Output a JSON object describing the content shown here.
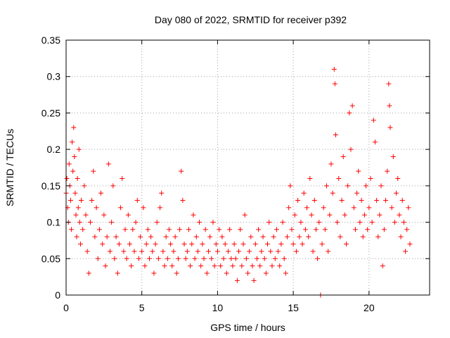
{
  "chart_data": {
    "type": "scatter",
    "title": "Day 080 of 2022, SRMTID for receiver p392",
    "xlabel": "GPS time / hours",
    "ylabel": "SRMTID / TECUs",
    "xlim": [
      0,
      24
    ],
    "ylim": [
      0,
      0.35
    ],
    "x_ticks": [
      0,
      5,
      10,
      15,
      20
    ],
    "x_tick_labels": [
      "0",
      "5",
      "10",
      "15",
      "20"
    ],
    "y_ticks": [
      0,
      0.05,
      0.1,
      0.15,
      0.2,
      0.25,
      0.3,
      0.35
    ],
    "y_tick_labels": [
      "0",
      "0.05",
      "0.1",
      "0.15",
      "0.2",
      "0.25",
      "0.3",
      "0.35"
    ],
    "grid": true,
    "marker": "+",
    "color": "#ff0000",
    "series": [
      {
        "name": "SRMTID",
        "points": [
          [
            0.0,
            0.14
          ],
          [
            0.05,
            0.16
          ],
          [
            0.1,
            0.12
          ],
          [
            0.15,
            0.1
          ],
          [
            0.2,
            0.18
          ],
          [
            0.25,
            0.15
          ],
          [
            0.3,
            0.13
          ],
          [
            0.35,
            0.09
          ],
          [
            0.4,
            0.21
          ],
          [
            0.45,
            0.17
          ],
          [
            0.5,
            0.23
          ],
          [
            0.55,
            0.19
          ],
          [
            0.6,
            0.14
          ],
          [
            0.65,
            0.11
          ],
          [
            0.7,
            0.08
          ],
          [
            0.75,
            0.16
          ],
          [
            0.8,
            0.12
          ],
          [
            0.85,
            0.2
          ],
          [
            0.9,
            0.1
          ],
          [
            0.95,
            0.07
          ],
          [
            1.0,
            0.13
          ],
          [
            1.1,
            0.09
          ],
          [
            1.2,
            0.15
          ],
          [
            1.3,
            0.11
          ],
          [
            1.4,
            0.06
          ],
          [
            1.5,
            0.03
          ],
          [
            1.6,
            0.1
          ],
          [
            1.7,
            0.13
          ],
          [
            1.8,
            0.17
          ],
          [
            1.9,
            0.08
          ],
          [
            2.0,
            0.12
          ],
          [
            2.1,
            0.05
          ],
          [
            2.2,
            0.09
          ],
          [
            2.3,
            0.14
          ],
          [
            2.4,
            0.07
          ],
          [
            2.5,
            0.11
          ],
          [
            2.6,
            0.04
          ],
          [
            2.7,
            0.08
          ],
          [
            2.8,
            0.18
          ],
          [
            2.9,
            0.06
          ],
          [
            3.0,
            0.1
          ],
          [
            3.1,
            0.15
          ],
          [
            3.2,
            0.05
          ],
          [
            3.3,
            0.08
          ],
          [
            3.4,
            0.03
          ],
          [
            3.5,
            0.07
          ],
          [
            3.6,
            0.12
          ],
          [
            3.7,
            0.16
          ],
          [
            3.8,
            0.06
          ],
          [
            3.9,
            0.09
          ],
          [
            4.0,
            0.05
          ],
          [
            4.1,
            0.11
          ],
          [
            4.2,
            0.07
          ],
          [
            4.3,
            0.04
          ],
          [
            4.4,
            0.09
          ],
          [
            4.5,
            0.06
          ],
          [
            4.6,
            0.1
          ],
          [
            4.7,
            0.13
          ],
          [
            4.8,
            0.05
          ],
          [
            4.9,
            0.08
          ],
          [
            5.0,
            0.06
          ],
          [
            5.1,
            0.12
          ],
          [
            5.2,
            0.04
          ],
          [
            5.3,
            0.07
          ],
          [
            5.4,
            0.09
          ],
          [
            5.5,
            0.05
          ],
          [
            5.6,
            0.08
          ],
          [
            5.7,
            0.06
          ],
          [
            5.8,
            0.03
          ],
          [
            5.9,
            0.07
          ],
          [
            6.0,
            0.1
          ],
          [
            6.1,
            0.05
          ],
          [
            6.2,
            0.12
          ],
          [
            6.3,
            0.14
          ],
          [
            6.4,
            0.06
          ],
          [
            6.5,
            0.04
          ],
          [
            6.6,
            0.08
          ],
          [
            6.7,
            0.05
          ],
          [
            6.8,
            0.09
          ],
          [
            6.9,
            0.07
          ],
          [
            7.0,
            0.04
          ],
          [
            7.1,
            0.06
          ],
          [
            7.2,
            0.08
          ],
          [
            7.3,
            0.03
          ],
          [
            7.4,
            0.05
          ],
          [
            7.5,
            0.09
          ],
          [
            7.6,
            0.17
          ],
          [
            7.7,
            0.13
          ],
          [
            7.8,
            0.07
          ],
          [
            7.9,
            0.05
          ],
          [
            8.0,
            0.06
          ],
          [
            8.1,
            0.09
          ],
          [
            8.2,
            0.04
          ],
          [
            8.3,
            0.07
          ],
          [
            8.4,
            0.11
          ],
          [
            8.5,
            0.05
          ],
          [
            8.6,
            0.08
          ],
          [
            8.7,
            0.06
          ],
          [
            8.8,
            0.1
          ],
          [
            8.9,
            0.04
          ],
          [
            9.0,
            0.07
          ],
          [
            9.1,
            0.05
          ],
          [
            9.2,
            0.09
          ],
          [
            9.3,
            0.03
          ],
          [
            9.4,
            0.06
          ],
          [
            9.5,
            0.08
          ],
          [
            9.6,
            0.05
          ],
          [
            9.7,
            0.1
          ],
          [
            9.8,
            0.04
          ],
          [
            9.9,
            0.07
          ],
          [
            10.0,
            0.06
          ],
          [
            10.1,
            0.09
          ],
          [
            10.2,
            0.04
          ],
          [
            10.3,
            0.08
          ],
          [
            10.4,
            0.05
          ],
          [
            10.5,
            0.07
          ],
          [
            10.6,
            0.03
          ],
          [
            10.7,
            0.06
          ],
          [
            10.8,
            0.09
          ],
          [
            10.9,
            0.05
          ],
          [
            11.0,
            0.04
          ],
          [
            11.1,
            0.07
          ],
          [
            11.2,
            0.05
          ],
          [
            11.3,
            0.02
          ],
          [
            11.4,
            0.06
          ],
          [
            11.5,
            0.09
          ],
          [
            11.6,
            0.04
          ],
          [
            11.7,
            0.07
          ],
          [
            11.8,
            0.11
          ],
          [
            11.9,
            0.05
          ],
          [
            12.0,
            0.03
          ],
          [
            12.1,
            0.06
          ],
          [
            12.2,
            0.08
          ],
          [
            12.3,
            0.04
          ],
          [
            12.4,
            0.02
          ],
          [
            12.5,
            0.07
          ],
          [
            12.6,
            0.05
          ],
          [
            12.7,
            0.09
          ],
          [
            12.8,
            0.04
          ],
          [
            12.9,
            0.06
          ],
          [
            13.0,
            0.08
          ],
          [
            13.1,
            0.05
          ],
          [
            13.2,
            0.03
          ],
          [
            13.3,
            0.07
          ],
          [
            13.4,
            0.1
          ],
          [
            13.5,
            0.06
          ],
          [
            13.6,
            0.04
          ],
          [
            13.7,
            0.08
          ],
          [
            13.8,
            0.05
          ],
          [
            13.9,
            0.09
          ],
          [
            14.0,
            0.06
          ],
          [
            14.1,
            0.04
          ],
          [
            14.2,
            0.07
          ],
          [
            14.3,
            0.1
          ],
          [
            14.4,
            0.05
          ],
          [
            14.5,
            0.03
          ],
          [
            14.6,
            0.08
          ],
          [
            14.7,
            0.12
          ],
          [
            14.8,
            0.15
          ],
          [
            14.9,
            0.09
          ],
          [
            15.0,
            0.07
          ],
          [
            15.1,
            0.11
          ],
          [
            15.2,
            0.06
          ],
          [
            15.3,
            0.13
          ],
          [
            15.4,
            0.08
          ],
          [
            15.5,
            0.1
          ],
          [
            15.6,
            0.07
          ],
          [
            15.7,
            0.14
          ],
          [
            15.8,
            0.09
          ],
          [
            15.9,
            0.12
          ],
          [
            16.0,
            0.08
          ],
          [
            16.1,
            0.16
          ],
          [
            16.2,
            0.11
          ],
          [
            16.3,
            0.06
          ],
          [
            16.4,
            0.13
          ],
          [
            16.5,
            0.09
          ],
          [
            16.6,
            0.05
          ],
          [
            16.7,
            0.1
          ],
          [
            16.8,
            0.0
          ],
          [
            16.9,
            0.07
          ],
          [
            17.0,
            0.12
          ],
          [
            17.1,
            0.09
          ],
          [
            17.2,
            0.15
          ],
          [
            17.3,
            0.06
          ],
          [
            17.4,
            0.11
          ],
          [
            17.5,
            0.18
          ],
          [
            17.6,
            0.14
          ],
          [
            17.7,
            0.31
          ],
          [
            17.75,
            0.29
          ],
          [
            17.8,
            0.22
          ],
          [
            17.9,
            0.1
          ],
          [
            18.0,
            0.16
          ],
          [
            18.1,
            0.08
          ],
          [
            18.2,
            0.13
          ],
          [
            18.3,
            0.19
          ],
          [
            18.4,
            0.11
          ],
          [
            18.5,
            0.07
          ],
          [
            18.6,
            0.15
          ],
          [
            18.7,
            0.25
          ],
          [
            18.8,
            0.2
          ],
          [
            18.9,
            0.26
          ],
          [
            19.0,
            0.12
          ],
          [
            19.1,
            0.09
          ],
          [
            19.2,
            0.14
          ],
          [
            19.3,
            0.17
          ],
          [
            19.4,
            0.1
          ],
          [
            19.5,
            0.13
          ],
          [
            19.6,
            0.08
          ],
          [
            19.7,
            0.11
          ],
          [
            19.8,
            0.15
          ],
          [
            19.9,
            0.09
          ],
          [
            20.0,
            0.12
          ],
          [
            20.1,
            0.16
          ],
          [
            20.2,
            0.1
          ],
          [
            20.3,
            0.24
          ],
          [
            20.4,
            0.21
          ],
          [
            20.5,
            0.13
          ],
          [
            20.6,
            0.08
          ],
          [
            20.7,
            0.11
          ],
          [
            20.8,
            0.15
          ],
          [
            20.9,
            0.04
          ],
          [
            21.0,
            0.09
          ],
          [
            21.1,
            0.13
          ],
          [
            21.2,
            0.17
          ],
          [
            21.3,
            0.29
          ],
          [
            21.35,
            0.26
          ],
          [
            21.4,
            0.23
          ],
          [
            21.5,
            0.12
          ],
          [
            21.6,
            0.19
          ],
          [
            21.7,
            0.1
          ],
          [
            21.8,
            0.14
          ],
          [
            21.9,
            0.16
          ],
          [
            22.0,
            0.11
          ],
          [
            22.1,
            0.08
          ],
          [
            22.2,
            0.13
          ],
          [
            22.3,
            0.1
          ],
          [
            22.4,
            0.06
          ],
          [
            22.5,
            0.09
          ],
          [
            22.6,
            0.12
          ],
          [
            22.7,
            0.07
          ]
        ]
      }
    ]
  }
}
